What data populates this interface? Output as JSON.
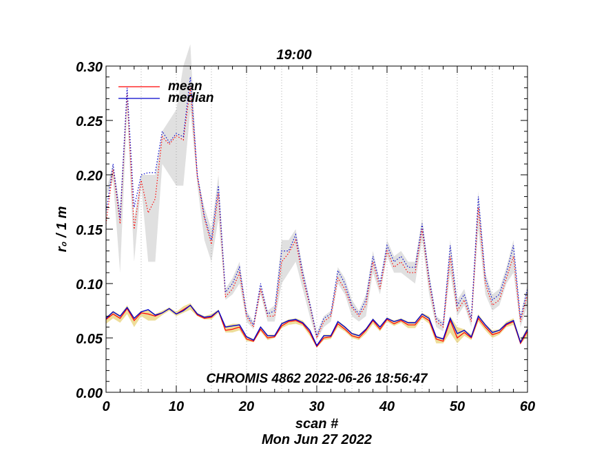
{
  "chart_data": {
    "type": "line",
    "title": "19:00",
    "xlabel": "scan #",
    "ylabel": "r₀ / 1 m",
    "date_label": "Mon Jun 27 2022",
    "annotation": "CHROMIS 4862 2022-06-26 18:56:47",
    "xlim": [
      0,
      60
    ],
    "ylim": [
      0,
      0.3
    ],
    "x_ticks": [
      0,
      10,
      20,
      30,
      40,
      50,
      60
    ],
    "x_tick_labels": [
      "0",
      "10",
      "20",
      "30",
      "40",
      "50",
      "60"
    ],
    "y_ticks": [
      0,
      0.05,
      0.1,
      0.15,
      0.2,
      0.25,
      0.3
    ],
    "y_tick_labels": [
      "0.00",
      "0.05",
      "0.10",
      "0.15",
      "0.20",
      "0.25",
      "0.30"
    ],
    "vertical_gridlines_x": [
      5,
      10,
      15,
      20,
      25,
      30,
      35,
      40,
      45,
      50,
      55
    ],
    "legend": {
      "position": "top-left",
      "entries": [
        {
          "label": "mean",
          "color": "#ff0000"
        },
        {
          "label": "median",
          "color": "#0000cc"
        }
      ]
    },
    "colors": {
      "mean": "#ff0000",
      "median": "#0000cc",
      "upper_band": "#e0e0e0",
      "lower_band": "#eedd99"
    },
    "x": [
      0,
      1,
      2,
      3,
      4,
      5,
      6,
      7,
      8,
      9,
      10,
      11,
      12,
      13,
      14,
      15,
      16,
      17,
      18,
      19,
      20,
      21,
      22,
      23,
      24,
      25,
      26,
      27,
      28,
      29,
      30,
      31,
      32,
      33,
      34,
      35,
      36,
      37,
      38,
      39,
      40,
      41,
      42,
      43,
      44,
      45,
      46,
      47,
      48,
      49,
      50,
      51,
      52,
      53,
      54,
      55,
      56,
      57,
      58,
      59,
      60
    ],
    "series": [
      {
        "name": "upper mean (dotted)",
        "values": [
          0.155,
          0.205,
          0.155,
          0.275,
          0.15,
          0.195,
          0.165,
          0.178,
          0.235,
          0.228,
          0.236,
          0.232,
          0.28,
          0.198,
          0.16,
          0.136,
          0.183,
          0.088,
          0.095,
          0.11,
          0.07,
          0.06,
          0.095,
          0.07,
          0.07,
          0.12,
          0.128,
          0.14,
          0.105,
          0.08,
          0.05,
          0.065,
          0.07,
          0.105,
          0.095,
          0.078,
          0.07,
          0.08,
          0.12,
          0.095,
          0.13,
          0.115,
          0.12,
          0.11,
          0.11,
          0.15,
          0.1,
          0.065,
          0.06,
          0.125,
          0.075,
          0.085,
          0.065,
          0.17,
          0.1,
          0.08,
          0.085,
          0.105,
          0.125,
          0.065,
          0.09
        ]
      },
      {
        "name": "upper median (dotted)",
        "values": [
          0.165,
          0.21,
          0.16,
          0.28,
          0.17,
          0.2,
          0.202,
          0.202,
          0.24,
          0.23,
          0.238,
          0.235,
          0.29,
          0.2,
          0.162,
          0.14,
          0.19,
          0.092,
          0.1,
          0.115,
          0.072,
          0.062,
          0.1,
          0.072,
          0.075,
          0.13,
          0.13,
          0.145,
          0.11,
          0.082,
          0.052,
          0.068,
          0.072,
          0.112,
          0.1,
          0.08,
          0.072,
          0.085,
          0.125,
          0.1,
          0.135,
          0.12,
          0.125,
          0.115,
          0.115,
          0.155,
          0.105,
          0.068,
          0.062,
          0.135,
          0.08,
          0.09,
          0.068,
          0.18,
          0.105,
          0.085,
          0.09,
          0.11,
          0.135,
          0.068,
          0.095
        ]
      },
      {
        "name": "lower mean (solid)",
        "values": [
          0.067,
          0.072,
          0.068,
          0.077,
          0.066,
          0.073,
          0.072,
          0.07,
          0.073,
          0.077,
          0.072,
          0.076,
          0.08,
          0.071,
          0.068,
          0.069,
          0.075,
          0.057,
          0.058,
          0.06,
          0.049,
          0.047,
          0.058,
          0.05,
          0.051,
          0.061,
          0.065,
          0.066,
          0.063,
          0.055,
          0.042,
          0.05,
          0.051,
          0.063,
          0.058,
          0.052,
          0.05,
          0.057,
          0.066,
          0.058,
          0.067,
          0.063,
          0.066,
          0.062,
          0.062,
          0.07,
          0.066,
          0.049,
          0.047,
          0.066,
          0.05,
          0.055,
          0.05,
          0.068,
          0.06,
          0.053,
          0.055,
          0.062,
          0.065,
          0.045,
          0.056
        ]
      },
      {
        "name": "lower median (solid)",
        "values": [
          0.068,
          0.074,
          0.07,
          0.078,
          0.068,
          0.074,
          0.076,
          0.071,
          0.073,
          0.077,
          0.072,
          0.075,
          0.08,
          0.072,
          0.069,
          0.07,
          0.075,
          0.06,
          0.061,
          0.062,
          0.051,
          0.048,
          0.06,
          0.052,
          0.052,
          0.063,
          0.066,
          0.067,
          0.064,
          0.057,
          0.043,
          0.052,
          0.052,
          0.065,
          0.06,
          0.054,
          0.052,
          0.058,
          0.067,
          0.06,
          0.068,
          0.065,
          0.067,
          0.064,
          0.064,
          0.072,
          0.068,
          0.051,
          0.049,
          0.068,
          0.054,
          0.057,
          0.051,
          0.07,
          0.062,
          0.055,
          0.057,
          0.063,
          0.066,
          0.046,
          0.058
        ]
      }
    ],
    "bands": [
      {
        "name": "upper spread",
        "lower": [
          0.18,
          0.195,
          0.11,
          0.26,
          0.12,
          0.19,
          0.12,
          0.12,
          0.21,
          0.2,
          0.19,
          0.19,
          0.26,
          0.19,
          0.14,
          0.12,
          0.16,
          0.085,
          0.09,
          0.1,
          0.065,
          0.058,
          0.09,
          0.065,
          0.065,
          0.1,
          0.11,
          0.12,
          0.095,
          0.07,
          0.048,
          0.06,
          0.065,
          0.1,
          0.09,
          0.07,
          0.065,
          0.07,
          0.11,
          0.09,
          0.125,
          0.11,
          0.11,
          0.105,
          0.1,
          0.14,
          0.09,
          0.06,
          0.056,
          0.11,
          0.07,
          0.08,
          0.06,
          0.15,
          0.09,
          0.075,
          0.08,
          0.1,
          0.11,
          0.06,
          0.08
        ],
        "upper": [
          0.185,
          0.21,
          0.17,
          0.28,
          0.16,
          0.2,
          0.2,
          0.2,
          0.24,
          0.25,
          0.26,
          0.3,
          0.32,
          0.2,
          0.17,
          0.15,
          0.2,
          0.095,
          0.105,
          0.12,
          0.075,
          0.065,
          0.1,
          0.075,
          0.08,
          0.14,
          0.14,
          0.15,
          0.115,
          0.085,
          0.055,
          0.07,
          0.075,
          0.115,
          0.105,
          0.085,
          0.075,
          0.09,
          0.13,
          0.1,
          0.14,
          0.125,
          0.13,
          0.12,
          0.12,
          0.16,
          0.11,
          0.07,
          0.065,
          0.14,
          0.085,
          0.095,
          0.07,
          0.185,
          0.11,
          0.09,
          0.095,
          0.115,
          0.14,
          0.07,
          0.1
        ]
      },
      {
        "name": "lower spread",
        "lower": [
          0.063,
          0.068,
          0.064,
          0.072,
          0.06,
          0.07,
          0.066,
          0.066,
          0.071,
          0.075,
          0.07,
          0.073,
          0.076,
          0.07,
          0.067,
          0.067,
          0.073,
          0.055,
          0.055,
          0.057,
          0.047,
          0.046,
          0.056,
          0.048,
          0.05,
          0.059,
          0.062,
          0.063,
          0.061,
          0.052,
          0.041,
          0.048,
          0.049,
          0.06,
          0.056,
          0.05,
          0.048,
          0.054,
          0.063,
          0.056,
          0.065,
          0.061,
          0.064,
          0.059,
          0.059,
          0.068,
          0.063,
          0.045,
          0.045,
          0.055,
          0.045,
          0.052,
          0.048,
          0.065,
          0.057,
          0.05,
          0.053,
          0.06,
          0.062,
          0.044,
          0.052
        ],
        "upper": [
          0.069,
          0.075,
          0.071,
          0.08,
          0.069,
          0.075,
          0.076,
          0.072,
          0.075,
          0.078,
          0.074,
          0.079,
          0.082,
          0.073,
          0.07,
          0.072,
          0.076,
          0.061,
          0.063,
          0.063,
          0.052,
          0.049,
          0.061,
          0.053,
          0.053,
          0.064,
          0.067,
          0.068,
          0.066,
          0.058,
          0.044,
          0.053,
          0.053,
          0.066,
          0.061,
          0.055,
          0.053,
          0.059,
          0.068,
          0.061,
          0.069,
          0.066,
          0.068,
          0.065,
          0.065,
          0.073,
          0.07,
          0.052,
          0.05,
          0.07,
          0.06,
          0.058,
          0.053,
          0.072,
          0.063,
          0.057,
          0.058,
          0.065,
          0.068,
          0.048,
          0.06
        ]
      }
    ]
  }
}
